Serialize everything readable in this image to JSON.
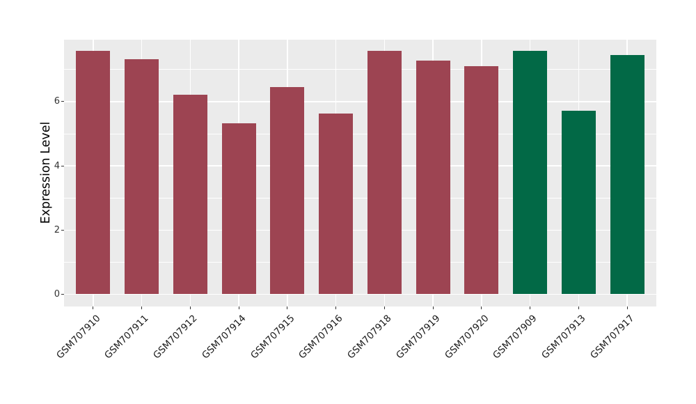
{
  "chart_data": {
    "type": "bar",
    "title": "",
    "xlabel": "",
    "ylabel": "Expression Level",
    "categories": [
      "GSM707910",
      "GSM707911",
      "GSM707912",
      "GSM707914",
      "GSM707915",
      "GSM707916",
      "GSM707918",
      "GSM707919",
      "GSM707920",
      "GSM707909",
      "GSM707913",
      "GSM707917"
    ],
    "values": [
      7.59,
      7.33,
      6.21,
      5.32,
      6.46,
      5.62,
      7.59,
      7.27,
      7.11,
      7.59,
      5.71,
      7.46
    ],
    "bar_colors": [
      "#9D4452",
      "#9D4452",
      "#9D4452",
      "#9D4452",
      "#9D4452",
      "#9D4452",
      "#9D4452",
      "#9D4452",
      "#9D4452",
      "#026946",
      "#026946",
      "#026946"
    ],
    "ylim": [
      -0.38,
      7.93
    ],
    "yticks_major": [
      0,
      2,
      4,
      6
    ],
    "yticks_minor": [
      1,
      3,
      5,
      7
    ],
    "grid": "major-and-minor, white on gray panel",
    "legend": "none",
    "bar_width_ratio": 0.7,
    "x_label_rotation_deg": 45,
    "colors": {
      "panel_background": "#EBEBEB",
      "figure_background": "#FFFFFF",
      "gridline": "#FFFFFF",
      "tick_mark": "#333333",
      "axis_text": "#333333",
      "axis_title": "#000000"
    }
  }
}
